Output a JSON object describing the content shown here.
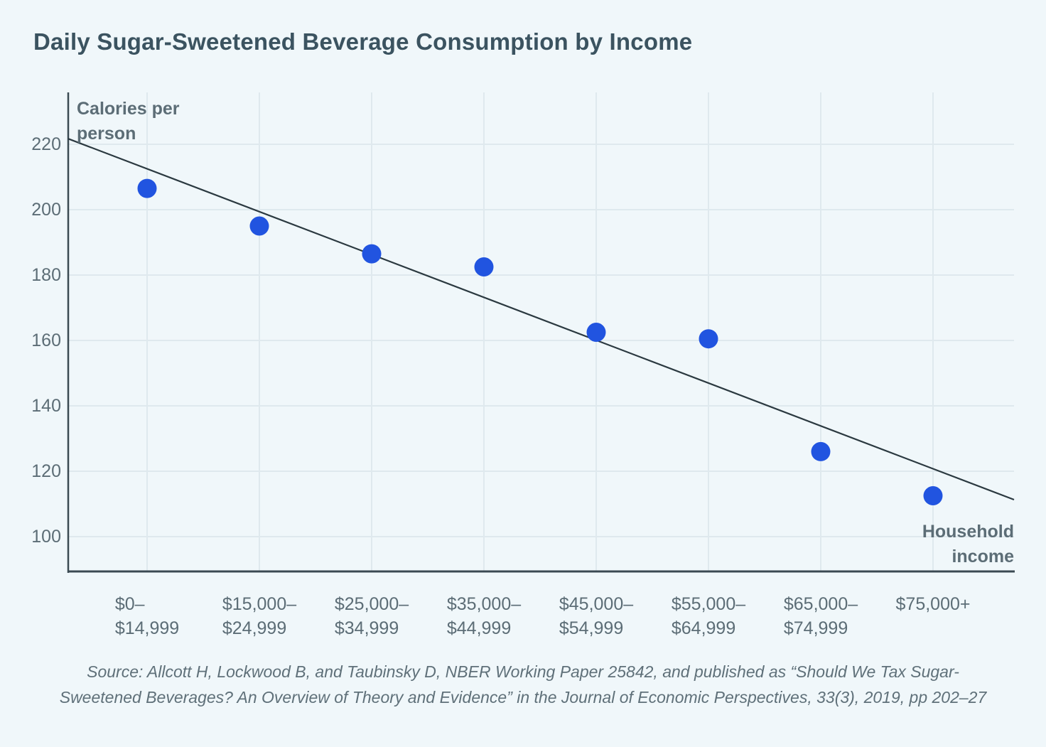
{
  "header": {
    "title": "Daily Sugar-Sweetened Beverage Consumption by Income"
  },
  "chart": {
    "y_axis_label_lines": [
      "Calories per",
      "person"
    ],
    "x_axis_label_lines": [
      "Household",
      "income"
    ],
    "y_tick_labels": [
      "220",
      "200",
      "180",
      "160",
      "140",
      "120",
      "100"
    ],
    "x_category_label_lines": [
      [
        "$0–",
        "$14,999"
      ],
      [
        "$15,000–",
        "$24,999"
      ],
      [
        "$25,000–",
        "$34,999"
      ],
      [
        "$35,000–",
        "$44,999"
      ],
      [
        "$45,000–",
        "$54,999"
      ],
      [
        "$55,000–",
        "$64,999"
      ],
      [
        "$65,000–",
        "$74,999"
      ],
      [
        "$75,000+"
      ]
    ]
  },
  "source": {
    "line1": "Source: Allcott H, Lockwood B, and Taubinsky D, NBER Working Paper 25842, and published as “Should We Tax Sugar-",
    "line2": "Sweetened Beverages? An Overview of Theory and Evidence” in the Journal of Economic Perspectives, 33(3), 2019, pp 202–27"
  },
  "chart_data": {
    "type": "scatter",
    "title": "Daily Sugar-Sweetened Beverage Consumption by Income",
    "xlabel": "Household income",
    "ylabel": "Calories per person",
    "categories": [
      "$0–$14,999",
      "$15,000–$24,999",
      "$25,000–$34,999",
      "$35,000–$44,999",
      "$45,000–$54,999",
      "$55,000–$64,999",
      "$65,000–$74,999",
      "$75,000+"
    ],
    "values": [
      206.5,
      195,
      186.5,
      182.5,
      162.5,
      160.5,
      126,
      112.5
    ],
    "y_ticks": [
      220,
      200,
      180,
      160,
      140,
      120,
      100
    ],
    "ylim": [
      88,
      236
    ],
    "grid": true,
    "legend": "none",
    "trendline": {
      "value_at_y_axis": 221.7,
      "value_at_right_edge": 111.3
    },
    "colors": {
      "background": "#f0f7fa",
      "point": "#2154e0",
      "trend_line": "#2b3940",
      "axis_line": "#3b4a52",
      "gridline": "#dfe9ee",
      "title_text": "#3b5360",
      "label_text": "#5c6d76",
      "source_text": "#5f7079"
    }
  }
}
